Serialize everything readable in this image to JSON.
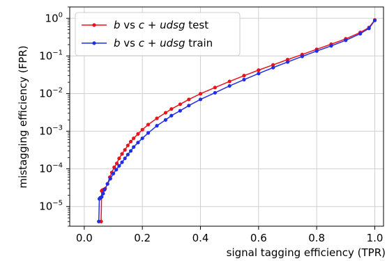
{
  "chart_data": {
    "type": "line",
    "xlabel": "signal tagging efficiency (TPR)",
    "ylabel": "mistagging efficiency (FPR)",
    "xlim": [
      -0.05,
      1.03
    ],
    "ylim": [
      3e-06,
      2
    ],
    "yscale": "log",
    "grid": true,
    "legend_position": "upper-left",
    "xticks": [
      {
        "value": 0.0,
        "label": "0.0"
      },
      {
        "value": 0.2,
        "label": "0.2"
      },
      {
        "value": 0.4,
        "label": "0.4"
      },
      {
        "value": 0.6,
        "label": "0.6"
      },
      {
        "value": 0.8,
        "label": "0.8"
      },
      {
        "value": 1.0,
        "label": "1.0"
      }
    ],
    "yticks": [
      {
        "value": 1e-05,
        "base": "10",
        "exp": "−5"
      },
      {
        "value": 0.0001,
        "base": "10",
        "exp": "−4"
      },
      {
        "value": 0.001,
        "base": "10",
        "exp": "−3"
      },
      {
        "value": 0.01,
        "base": "10",
        "exp": "−2"
      },
      {
        "value": 0.1,
        "base": "10",
        "exp": "−1"
      },
      {
        "value": 1,
        "base": "10",
        "exp": "0"
      }
    ],
    "series": [
      {
        "name": "b vs c + udsg test",
        "legend": {
          "a": "b",
          "vs": " vs ",
          "c": "c",
          "plus": " + ",
          "udsg": "udsg",
          "suffix": " test"
        },
        "color": "#e8141b",
        "x": [
          0.058,
          0.06,
          0.062,
          0.066,
          0.072,
          0.08,
          0.088,
          0.095,
          0.103,
          0.112,
          0.12,
          0.13,
          0.14,
          0.15,
          0.16,
          0.17,
          0.185,
          0.2,
          0.22,
          0.25,
          0.28,
          0.3,
          0.33,
          0.36,
          0.4,
          0.45,
          0.5,
          0.55,
          0.6,
          0.65,
          0.7,
          0.75,
          0.8,
          0.85,
          0.9,
          0.95,
          0.98,
          1.0
        ],
        "y": [
          4e-06,
          2.6e-05,
          2.7e-05,
          2.8e-05,
          3e-05,
          4e-05,
          6e-05,
          8e-05,
          0.00011,
          0.00014,
          0.00019,
          0.00025,
          0.00032,
          0.00042,
          0.00053,
          0.00065,
          0.00085,
          0.0011,
          0.0015,
          0.0022,
          0.0031,
          0.0039,
          0.0052,
          0.007,
          0.0099,
          0.0145,
          0.021,
          0.03,
          0.042,
          0.058,
          0.08,
          0.109,
          0.15,
          0.205,
          0.285,
          0.42,
          0.57,
          0.9
        ]
      },
      {
        "name": "b vs c + udsg train",
        "legend": {
          "a": "b",
          "vs": " vs ",
          "c": "c",
          "plus": " + ",
          "udsg": "udsg",
          "suffix": " train"
        },
        "color": "#1f2fe6",
        "x": [
          0.05,
          0.052,
          0.055,
          0.06,
          0.065,
          0.07,
          0.08,
          0.09,
          0.1,
          0.11,
          0.12,
          0.13,
          0.14,
          0.15,
          0.16,
          0.17,
          0.185,
          0.2,
          0.22,
          0.25,
          0.28,
          0.3,
          0.33,
          0.36,
          0.4,
          0.45,
          0.5,
          0.55,
          0.6,
          0.65,
          0.7,
          0.75,
          0.8,
          0.85,
          0.9,
          0.95,
          0.98,
          1.0
        ],
        "y": [
          4e-06,
          1.6e-05,
          1.7e-05,
          1.8e-05,
          2.2e-05,
          2.8e-05,
          4e-05,
          5.5e-05,
          7.5e-05,
          9.5e-05,
          0.00012,
          0.00015,
          0.00019,
          0.00024,
          0.0003,
          0.00038,
          0.0005,
          0.00065,
          0.0009,
          0.0014,
          0.002,
          0.0026,
          0.0035,
          0.0048,
          0.007,
          0.0105,
          0.016,
          0.0235,
          0.034,
          0.049,
          0.069,
          0.097,
          0.135,
          0.185,
          0.26,
          0.39,
          0.54,
          0.88
        ]
      }
    ]
  }
}
